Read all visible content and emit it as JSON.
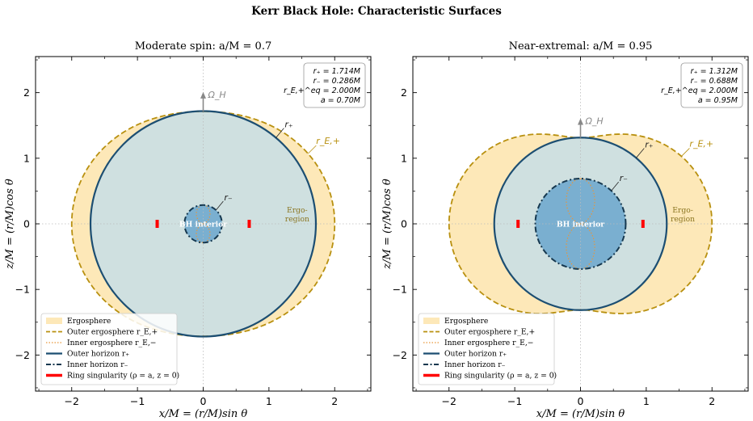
{
  "figure": {
    "suptitle": "Kerr Black Hole: Characteristic Surfaces",
    "xlabel": "x/M = (r/M)sin θ",
    "ylabel": "z/M = (r/M)cos θ"
  },
  "colors": {
    "ergosphere_fill": "#fde8b8",
    "outer_ergo": "#b8900f",
    "inner_ergo": "#e8963a",
    "outer_horizon": "#1c4e72",
    "horizon_fill": "#cfe0e0",
    "inner_fill": "#7aafd0",
    "ring": "#ff0000",
    "omega_arrow": "#888888",
    "ergo_text": "#8a7420"
  },
  "chart_data": [
    {
      "type": "area",
      "title": "Moderate spin: a/M = 0.7",
      "spin": 0.7,
      "xlim": [
        -2.55,
        2.55
      ],
      "ylim": [
        -2.55,
        2.55
      ],
      "xticks": [
        -2,
        -1,
        0,
        1,
        2
      ],
      "yticks": [
        -2,
        -1,
        0,
        1,
        2
      ],
      "grid": "dotted axes through origin",
      "info_box": [
        "r₊ = 1.714M",
        "r₋ = 0.286M",
        "r_E,+^eq = 2.000M",
        "a = 0.70M"
      ],
      "series": [
        {
          "name": "Outer ergosphere r_E,+",
          "equatorial_radius": 2.0,
          "polar_radius": 1.714
        },
        {
          "name": "Inner ergosphere r_E,−",
          "equatorial_radius": 0.0,
          "polar_radius": 0.286
        },
        {
          "name": "Outer horizon r₊",
          "radius": 1.714
        },
        {
          "name": "Inner horizon r₋",
          "radius": 0.286
        },
        {
          "name": "Ring singularity (ρ = a, z = 0)",
          "rho": 0.7
        }
      ],
      "annotations": {
        "r_plus": "r₊",
        "r_minus": "r₋",
        "r_e_plus": "r_E,+",
        "ergo": "Ergo-\nregion",
        "interior": "BH interior",
        "omega": "Ω_H"
      },
      "legend_position": "lower-left"
    },
    {
      "type": "area",
      "title": "Near-extremal: a/M = 0.95",
      "spin": 0.95,
      "xlim": [
        -2.55,
        2.55
      ],
      "ylim": [
        -2.55,
        2.55
      ],
      "xticks": [
        -2,
        -1,
        0,
        1,
        2
      ],
      "yticks": [
        -2,
        -1,
        0,
        1,
        2
      ],
      "grid": "dotted axes through origin",
      "info_box": [
        "r₊ = 1.312M",
        "r₋ = 0.688M",
        "r_E,+^eq = 2.000M",
        "a = 0.95M"
      ],
      "series": [
        {
          "name": "Outer ergosphere r_E,+",
          "equatorial_radius": 2.0,
          "polar_radius": 1.312
        },
        {
          "name": "Inner ergosphere r_E,−",
          "equatorial_radius": 0.0,
          "polar_radius": 0.688
        },
        {
          "name": "Outer horizon r₊",
          "radius": 1.312
        },
        {
          "name": "Inner horizon r₋",
          "radius": 0.688
        },
        {
          "name": "Ring singularity (ρ = a, z = 0)",
          "rho": 0.95
        }
      ],
      "annotations": {
        "r_plus": "r₊",
        "r_minus": "r₋",
        "r_e_plus": "r_E,+",
        "ergo": "Ergo-\nregion",
        "interior": "BH interior",
        "omega": "Ω_H"
      },
      "legend_position": "lower-left"
    }
  ],
  "legend": [
    {
      "label": "Ergosphere",
      "style": "patch"
    },
    {
      "label": "Outer ergosphere r_E,+",
      "style": "dashed-gold"
    },
    {
      "label": "Inner ergosphere r_E,−",
      "style": "dotted-orange"
    },
    {
      "label": "Outer horizon r₊",
      "style": "solid-blue"
    },
    {
      "label": "Inner horizon r₋",
      "style": "dashdot-blue"
    },
    {
      "label": "Ring singularity (ρ = a, z = 0)",
      "style": "thick-red"
    }
  ]
}
